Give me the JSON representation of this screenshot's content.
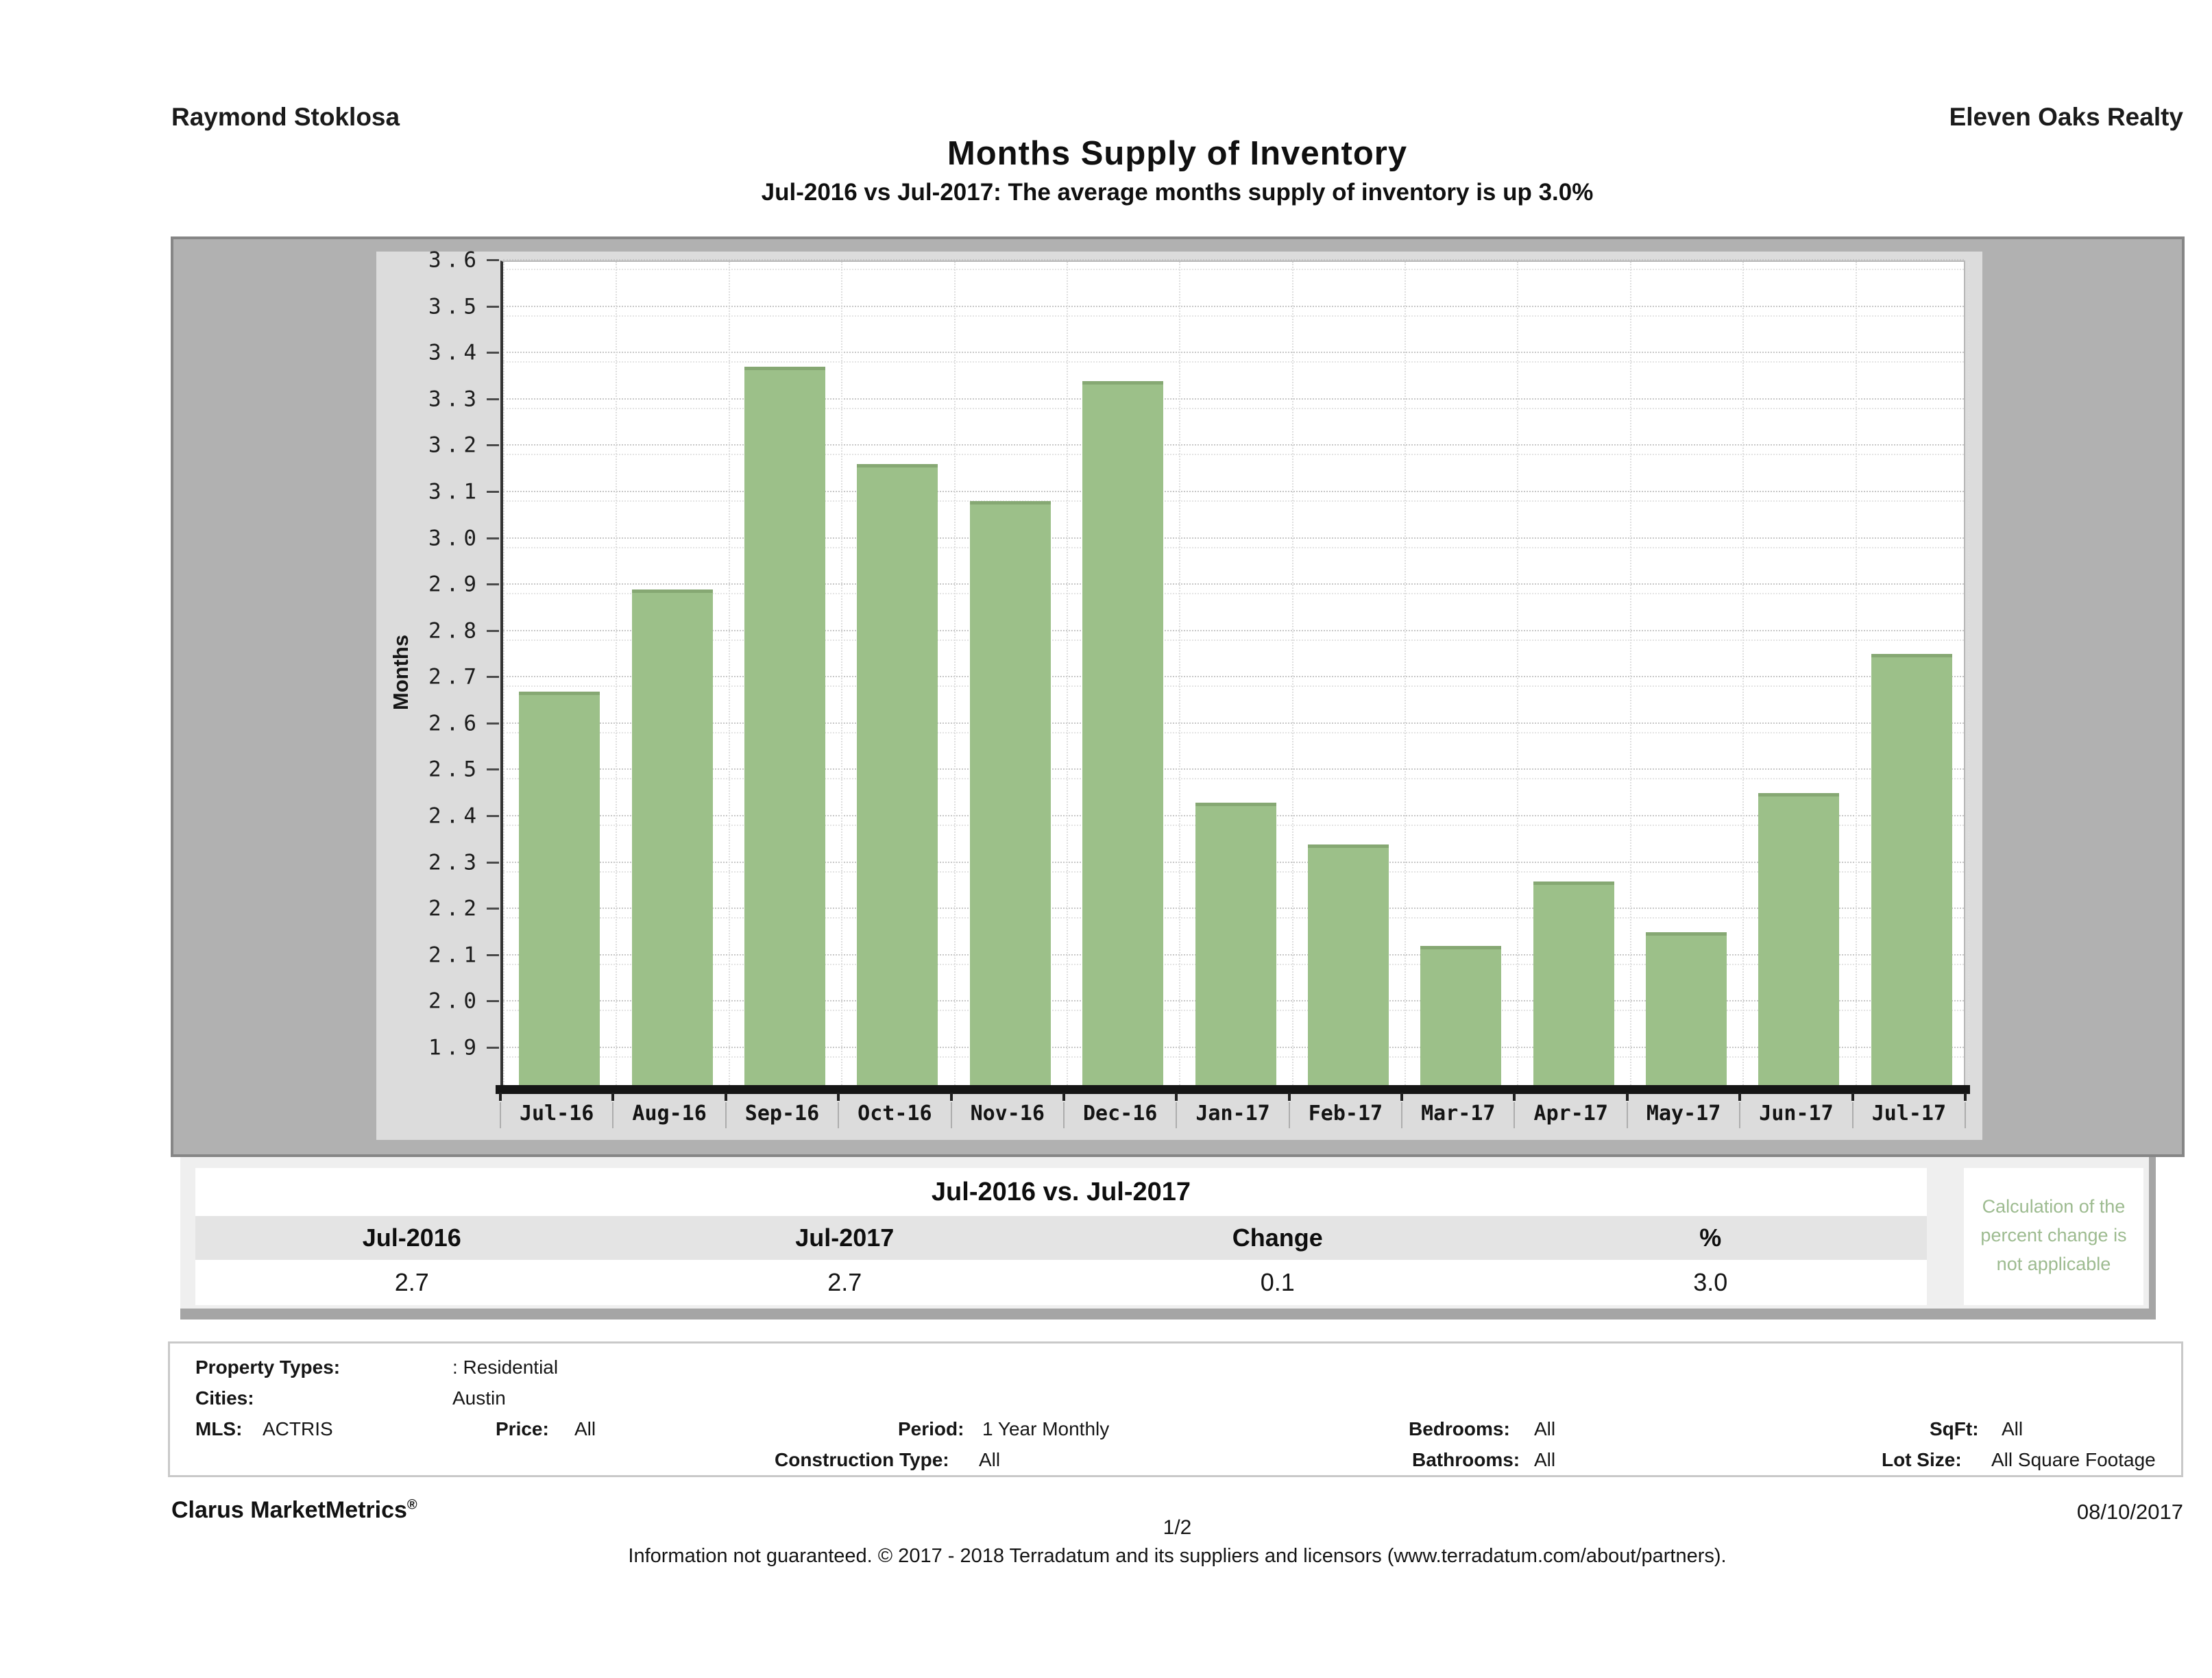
{
  "header": {
    "agent": "Raymond Stoklosa",
    "company": "Eleven Oaks Realty"
  },
  "title": "Months Supply of Inventory",
  "subtitle": "Jul-2016 vs Jul-2017: The average months supply of inventory is up 3.0%",
  "chart_data": {
    "type": "bar",
    "title": "Months Supply of Inventory",
    "ylabel": "Months",
    "categories": [
      "Jul-16",
      "Aug-16",
      "Sep-16",
      "Oct-16",
      "Nov-16",
      "Dec-16",
      "Jan-17",
      "Feb-17",
      "Mar-17",
      "Apr-17",
      "May-17",
      "Jun-17",
      "Jul-17"
    ],
    "values": [
      2.67,
      2.89,
      3.37,
      3.16,
      3.08,
      3.34,
      2.43,
      2.34,
      2.12,
      2.26,
      2.15,
      2.45,
      2.75
    ],
    "ylim": [
      1.82,
      3.6
    ],
    "ytick_min": 1.9,
    "ytick_max": 3.6,
    "ytick_step": 0.1,
    "grid": "horizontal-dotted",
    "legend": "none",
    "bar_color": "#9cc089"
  },
  "comparison": {
    "title": "Jul-2016 vs. Jul-2017",
    "columns": [
      "Jul-2016",
      "Jul-2017",
      "Change",
      "%"
    ],
    "values": [
      "2.7",
      "2.7",
      "0.1",
      "3.0"
    ],
    "note": "Calculation of the percent change is not applicable"
  },
  "criteria": {
    "rows": [
      [
        {
          "label": "Property Types:"
        },
        {
          "value": ": Residential"
        }
      ],
      [
        {
          "label": "Cities:"
        },
        {
          "value": "Austin"
        }
      ],
      [
        {
          "label": "MLS:"
        },
        {
          "value": "ACTRIS"
        },
        {
          "label": "Price:"
        },
        {
          "value": "All"
        },
        {
          "label": "Period:"
        },
        {
          "value": "1 Year Monthly"
        },
        {
          "label": "Bedrooms:"
        },
        {
          "value": "All"
        },
        {
          "label": "SqFt:"
        },
        {
          "value": "All"
        }
      ],
      [
        {
          "label": "Construction Type:"
        },
        {
          "value": "All"
        },
        {
          "label": "Bathrooms:"
        },
        {
          "value": "All"
        },
        {
          "label": "Lot Size:"
        },
        {
          "value": "All Square Footage"
        }
      ]
    ]
  },
  "footer": {
    "brand": "Clarus MarketMetrics",
    "reg": "®",
    "page": "1/2",
    "date": "08/10/2017",
    "disclaimer": "Information not guaranteed. © 2017 - 2018 Terradatum and its suppliers and licensors (www.terradatum.com/about/partners)."
  }
}
